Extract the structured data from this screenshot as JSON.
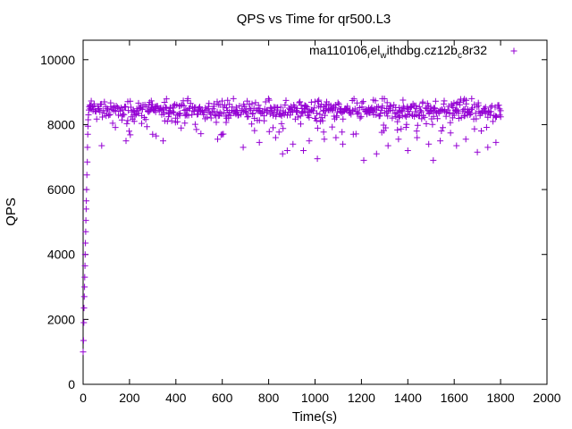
{
  "chart_data": {
    "type": "scatter",
    "title": "QPS vs Time for qr500.L3",
    "xlabel": "Time(s)",
    "ylabel": "QPS",
    "xlim": [
      0,
      2000
    ],
    "ylim": [
      0,
      10600
    ],
    "xticks": [
      0,
      200,
      400,
      600,
      800,
      1000,
      1200,
      1400,
      1600,
      1800,
      2000
    ],
    "yticks": [
      0,
      2000,
      4000,
      6000,
      8000,
      10000
    ],
    "legend_position": "top-right",
    "marker": "plus",
    "grid": false,
    "color": "#9400d3",
    "series": [
      {
        "name_parts": [
          "ma110106",
          "r",
          "el",
          "w",
          "ithdbg.cz12b",
          "c",
          "8r32"
        ],
        "name_subscript_flags": [
          false,
          true,
          false,
          true,
          false,
          true,
          false
        ],
        "ramp": [
          [
            0,
            1000
          ],
          [
            2,
            1350
          ],
          [
            3,
            1900
          ],
          [
            4,
            2350
          ],
          [
            5,
            2700
          ],
          [
            6,
            3000
          ],
          [
            7,
            3300
          ],
          [
            8,
            3650
          ],
          [
            9,
            4000
          ],
          [
            10,
            4350
          ],
          [
            11,
            4700
          ],
          [
            12,
            5050
          ],
          [
            13,
            5400
          ],
          [
            14,
            5650
          ],
          [
            15,
            6000
          ],
          [
            16,
            6450
          ],
          [
            18,
            6850
          ],
          [
            19,
            7300
          ],
          [
            20,
            7700
          ],
          [
            21,
            7950
          ],
          [
            22,
            8150
          ],
          [
            23,
            8300
          ],
          [
            25,
            8450
          ],
          [
            27,
            8550
          ],
          [
            29,
            8600
          ],
          [
            30,
            8500
          ]
        ],
        "steady_start": 30,
        "steady_end": 1800,
        "steady_median": 8450,
        "steady_band": [
          8100,
          8800
        ],
        "outliers": [
          [
            80,
            7350
          ],
          [
            185,
            7500
          ],
          [
            300,
            7700
          ],
          [
            315,
            7650
          ],
          [
            345,
            7500
          ],
          [
            580,
            7550
          ],
          [
            600,
            7700
          ],
          [
            690,
            7300
          ],
          [
            760,
            7450
          ],
          [
            830,
            7600
          ],
          [
            860,
            7100
          ],
          [
            880,
            7200
          ],
          [
            905,
            7400
          ],
          [
            950,
            7200
          ],
          [
            975,
            7500
          ],
          [
            1010,
            6950
          ],
          [
            1040,
            7550
          ],
          [
            1090,
            7600
          ],
          [
            1120,
            7400
          ],
          [
            1165,
            7700
          ],
          [
            1210,
            6900
          ],
          [
            1265,
            7100
          ],
          [
            1315,
            7350
          ],
          [
            1360,
            7550
          ],
          [
            1400,
            7200
          ],
          [
            1440,
            7600
          ],
          [
            1490,
            7400
          ],
          [
            1510,
            6900
          ],
          [
            1540,
            7500
          ],
          [
            1610,
            7350
          ],
          [
            1650,
            7550
          ],
          [
            1700,
            7150
          ],
          [
            1745,
            7300
          ],
          [
            1780,
            7450
          ]
        ]
      }
    ]
  }
}
